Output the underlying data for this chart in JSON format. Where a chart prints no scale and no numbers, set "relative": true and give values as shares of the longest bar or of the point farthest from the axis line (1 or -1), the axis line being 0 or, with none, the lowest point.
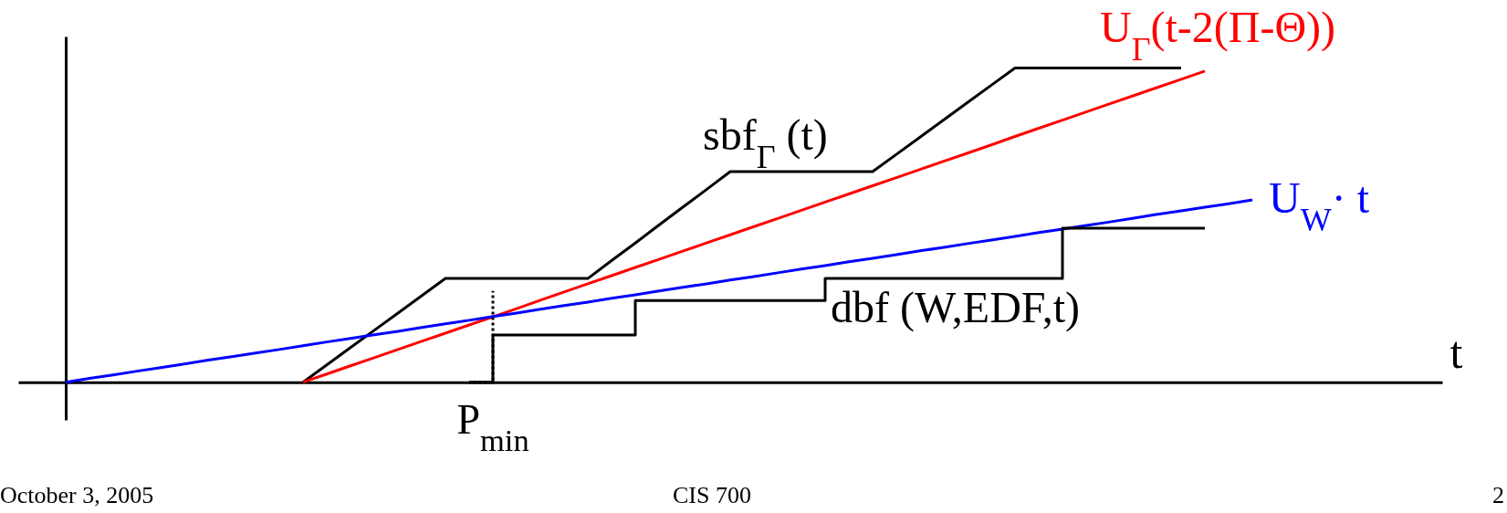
{
  "chart_data": {
    "type": "line",
    "relative": true,
    "xlabel": "t",
    "categories": [
      null,
      null,
      null,
      null,
      null,
      null,
      null,
      null,
      null,
      null,
      null,
      null,
      null,
      null,
      null,
      null,
      null,
      null,
      null,
      null,
      null,
      null,
      null,
      null,
      null,
      null,
      null,
      null,
      null,
      null,
      null,
      null,
      null,
      null,
      null,
      null,
      null,
      null,
      null,
      null,
      null,
      null,
      null,
      null,
      null,
      null,
      null,
      null,
      null,
      null,
      null,
      null,
      null,
      null,
      null,
      null,
      null,
      null,
      null,
      null,
      null
    ],
    "series": [
      {
        "name": "sbf$_{Γ}$ (t)",
        "color": "#000000",
        "values": [
          null,
          null,
          null,
          null,
          null,
          null,
          null,
          null,
          null,
          null,
          null,
          null,
          0,
          0.055,
          0.11,
          0.165,
          0.22,
          0.275,
          0.33,
          0.33,
          0.33,
          0.33,
          0.33,
          0.33,
          0.33,
          0.387,
          0.443,
          0.5,
          0.557,
          0.613,
          0.67,
          0.67,
          0.67,
          0.67,
          0.67,
          0.67,
          0.67,
          0.725,
          0.78,
          0.835,
          0.89,
          0.945,
          1,
          1,
          1,
          1,
          1,
          1,
          1,
          1,
          null,
          null,
          null,
          null,
          null,
          null,
          null,
          null,
          null,
          null,
          null
        ]
      },
      {
        "name": "U$_{Γ}$(t-2(Π-Θ))",
        "color": "#ff0000",
        "values": [
          null,
          null,
          null,
          null,
          null,
          null,
          null,
          null,
          null,
          null,
          null,
          null,
          0,
          0.026,
          0.052,
          0.078,
          0.104,
          0.13,
          0.156,
          0.182,
          0.208,
          0.234,
          0.261,
          0.287,
          0.313,
          0.339,
          0.365,
          0.391,
          0.417,
          0.443,
          0.469,
          0.495,
          0.521,
          0.547,
          0.573,
          0.599,
          0.625,
          0.651,
          0.677,
          0.703,
          0.729,
          0.755,
          0.782,
          0.808,
          0.834,
          0.86,
          0.886,
          0.912,
          0.938,
          0.964,
          0.99,
          null,
          null,
          null,
          null,
          null,
          null,
          null,
          null,
          null,
          null
        ]
      },
      {
        "name": "U$_{W}$· t",
        "color": "#0000ff",
        "values": [
          null,
          null,
          0,
          0.012,
          0.023,
          0.035,
          0.046,
          0.058,
          0.07,
          0.081,
          0.093,
          0.104,
          0.116,
          0.128,
          0.139,
          0.151,
          0.162,
          0.174,
          0.186,
          0.197,
          0.209,
          0.22,
          0.232,
          0.244,
          0.255,
          0.267,
          0.278,
          0.29,
          0.302,
          0.313,
          0.325,
          0.336,
          0.348,
          0.36,
          0.371,
          0.383,
          0.394,
          0.406,
          0.418,
          0.429,
          0.441,
          0.452,
          0.464,
          0.476,
          0.487,
          0.499,
          0.51,
          0.522,
          0.534,
          0.545,
          0.557,
          0.568,
          0.58,
          null,
          null,
          null,
          null,
          null,
          null,
          null,
          null
        ]
      },
      {
        "name": "dbf (W,EDF,t)",
        "type": "step",
        "color": "#000000",
        "values": [
          null,
          null,
          null,
          null,
          null,
          null,
          null,
          null,
          null,
          null,
          null,
          null,
          null,
          null,
          null,
          null,
          null,
          null,
          null,
          0,
          0.15,
          0.15,
          0.15,
          0.15,
          0.15,
          0.15,
          0.26,
          0.26,
          0.26,
          0.26,
          0.26,
          0.26,
          0.26,
          0.26,
          0.33,
          0.33,
          0.33,
          0.33,
          0.33,
          0.33,
          0.33,
          0.33,
          0.33,
          0.33,
          0.49,
          0.49,
          0.49,
          0.49,
          0.49,
          0.49,
          0.49,
          null,
          null,
          null,
          null,
          null,
          null,
          null,
          null,
          null,
          null
        ]
      },
      {
        "type": "step",
        "color": "#000000",
        "line_style": "dotted",
        "values": [
          null,
          null,
          null,
          null,
          null,
          null,
          null,
          null,
          null,
          null,
          null,
          null,
          null,
          null,
          null,
          null,
          null,
          null,
          null,
          0,
          0.29,
          null,
          null,
          null,
          null,
          null,
          null,
          null,
          null,
          null,
          null,
          null,
          null,
          null,
          null,
          null,
          null,
          null,
          null,
          null,
          null,
          null,
          null,
          null,
          null,
          null,
          null,
          null,
          null,
          null,
          null,
          null,
          null,
          null,
          null,
          null,
          null,
          null,
          null,
          null,
          null
        ]
      }
    ],
    "annotations": [
      "P$_{min}$",
      "October 3,  2005",
      "CIS 700",
      "2"
    ]
  }
}
